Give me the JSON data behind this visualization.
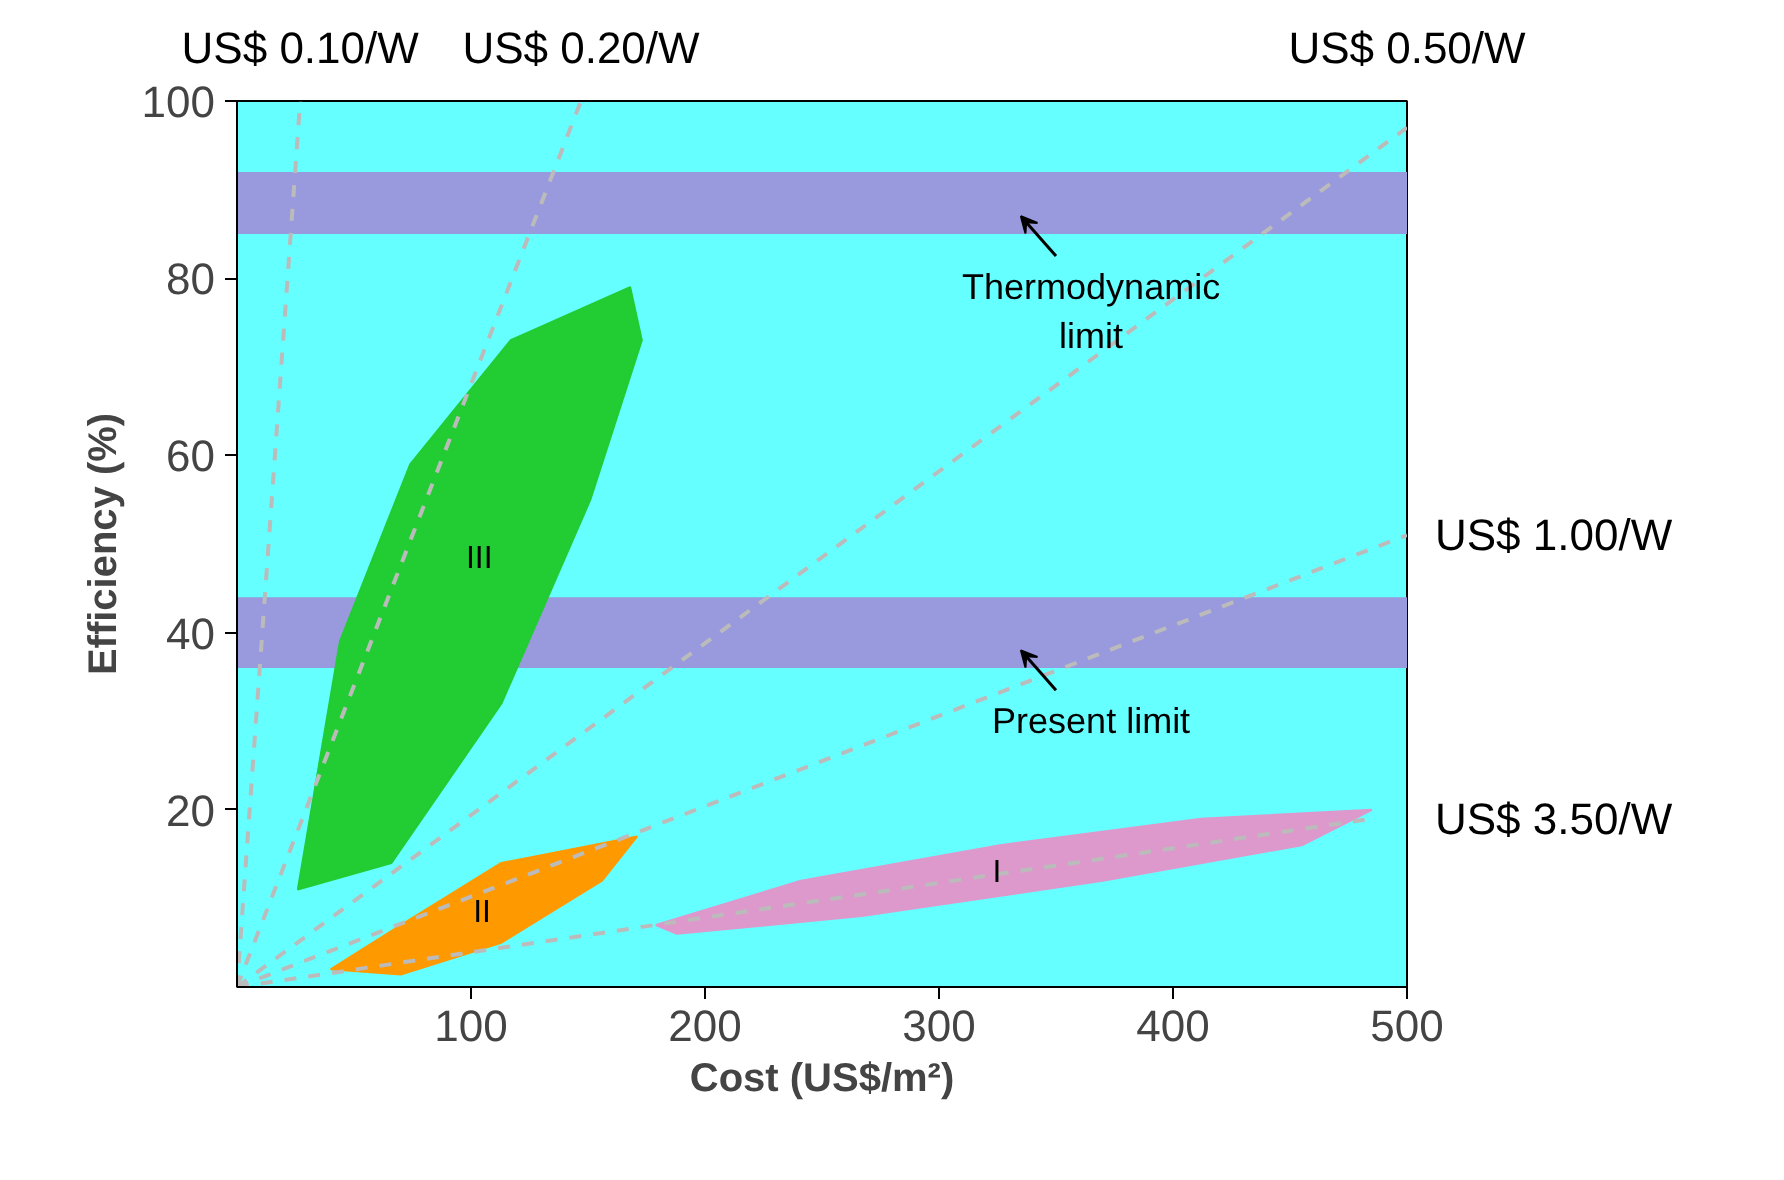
{
  "chart_data": {
    "type": "area",
    "xlabel": "Cost (US$/m²)",
    "ylabel": "Efficiency (%)",
    "xlim": [
      0,
      500
    ],
    "ylim": [
      0,
      100
    ],
    "xticks": [
      100,
      200,
      300,
      400,
      500
    ],
    "yticks": [
      20,
      40,
      60,
      80,
      100
    ],
    "grid": false,
    "legend": false,
    "series": [
      {
        "name": "III",
        "color": "#22cc33",
        "x": [
          26,
          44,
          74,
          117,
          168,
          173,
          151,
          113,
          66
        ],
        "values": [
          11,
          39,
          59,
          73,
          79,
          73,
          55,
          32,
          14
        ]
      },
      {
        "name": "II",
        "color": "#ff9900",
        "x": [
          40,
          70,
          113,
          171,
          156,
          113,
          70
        ],
        "values": [
          2,
          7,
          14,
          17,
          12,
          5,
          1.4
        ]
      },
      {
        "name": "I",
        "color": "#dd99cc",
        "x": [
          179,
          241,
          326,
          412,
          485,
          455,
          370,
          267,
          188
        ],
        "values": [
          7,
          12,
          16,
          19,
          20,
          16,
          12,
          8,
          6
        ]
      },
      {
        "name": "US$ 0.10/W",
        "type": "line",
        "color": "#bbbbbb",
        "line_style": "dashed",
        "x": [
          0,
          27
        ],
        "values": [
          0,
          100
        ]
      },
      {
        "name": "US$ 0.20/W",
        "type": "line",
        "color": "#bbbbbb",
        "line_style": "dashed",
        "x": [
          0,
          147
        ],
        "values": [
          0,
          100
        ]
      },
      {
        "name": "US$ 0.50/W",
        "type": "line",
        "color": "#bbbbbb",
        "line_style": "dashed",
        "x": [
          0,
          500
        ],
        "values": [
          0,
          97
        ]
      },
      {
        "name": "US$ 1.00/W",
        "type": "line",
        "color": "#bbbbbb",
        "line_style": "dashed",
        "x": [
          0,
          500
        ],
        "values": [
          0,
          51
        ]
      },
      {
        "name": "US$ 3.50/W",
        "type": "line",
        "color": "#bbbbbb",
        "line_style": "dashed",
        "x": [
          0,
          485
        ],
        "values": [
          0,
          19
        ]
      }
    ],
    "bands": [
      {
        "axis": "y",
        "from": 85,
        "to": 92,
        "label": "Thermodynamic\nlimit",
        "color": "#9999dd"
      },
      {
        "axis": "y",
        "from": 36,
        "to": 44,
        "label": "Present limit",
        "color": "#9999dd"
      }
    ]
  }
}
